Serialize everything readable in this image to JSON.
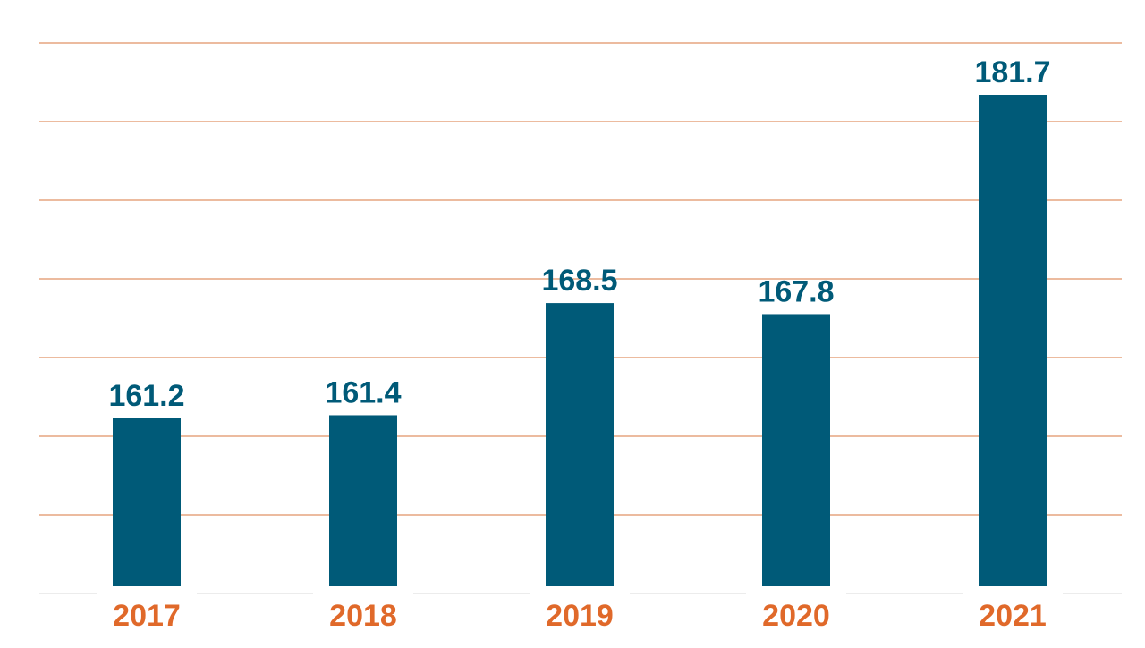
{
  "chart_data": {
    "type": "bar",
    "title": "",
    "xlabel": "",
    "ylabel": "",
    "categories": [
      "2017",
      "2018",
      "2019",
      "2020",
      "2021"
    ],
    "values": [
      161.2,
      161.4,
      168.5,
      167.8,
      181.7
    ],
    "data_labels": [
      "161.2",
      "161.4",
      "168.5",
      "167.8",
      "181.7"
    ],
    "ylim": [
      150,
      185
    ],
    "grid": true,
    "legend": "none",
    "y_tick_labels_shown": false,
    "colors": {
      "bar": "#005a78",
      "data_label": "#005a78",
      "category_label": "#e0692a",
      "gridline": "#d9773f",
      "baseline": "#d9d9d9"
    }
  }
}
